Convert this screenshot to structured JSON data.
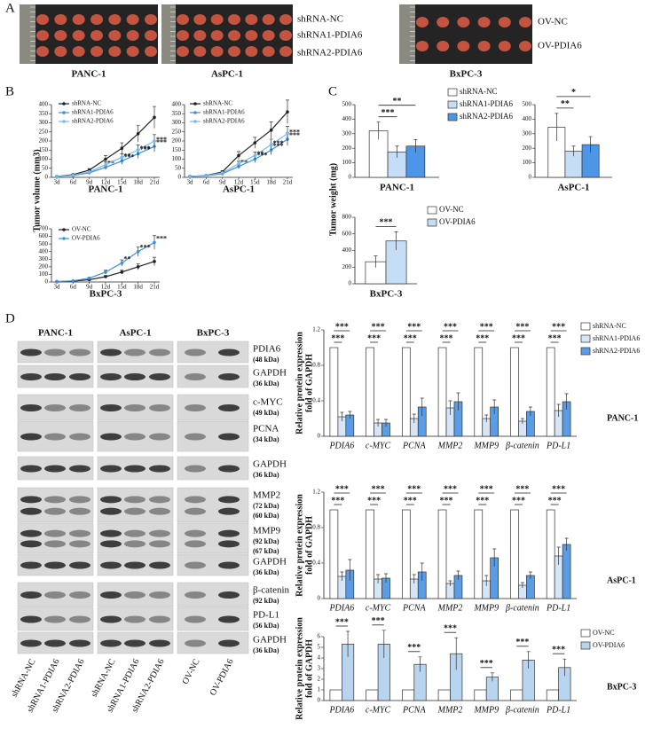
{
  "figure": {
    "panel_labels": [
      "A",
      "B",
      "C",
      "D"
    ]
  },
  "panel_a": {
    "shrna_legend": [
      "shRNA-NC",
      "shRNA1-PDIA6",
      "shRNA2-PDIA6"
    ],
    "ov_legend": [
      "OV-NC",
      "OV-PDIA6"
    ],
    "cell_lines": [
      "PANC-1",
      "AsPC-1",
      "BxPC-3"
    ]
  },
  "panel_b": {
    "ylabel": "Tumor volume (mm3)"
  },
  "panel_c": {
    "ylabel": "Tumor weight (mg)"
  },
  "panel_d_blots": {
    "cell_lines": [
      "PANC-1",
      "AsPC-1",
      "BxPC-3"
    ],
    "rows": [
      {
        "protein": "PDIA6",
        "sizes": [
          "(48 kDa)"
        ]
      },
      {
        "protein": "GAPDH",
        "sizes": [
          "(36 kDa)"
        ]
      },
      {
        "protein": "c-MYC",
        "sizes": [
          "(49 kDa)"
        ]
      },
      {
        "protein": "PCNA",
        "sizes": [
          "(34 kDa)"
        ]
      },
      {
        "protein": "GAPDH",
        "sizes": [
          "(36 kDa)"
        ]
      },
      {
        "protein": "MMP2",
        "sizes": [
          "(72 kDa)",
          "(60 kDa)"
        ]
      },
      {
        "protein": "MMP9",
        "sizes": [
          "(92 kDa)",
          "(67 kDa)"
        ]
      },
      {
        "protein": "GAPDH",
        "sizes": [
          "(36 kDa)"
        ]
      },
      {
        "protein": "β-catenin",
        "sizes": [
          "(92 kDa)"
        ]
      },
      {
        "protein": "PD-L1",
        "sizes": [
          "(56 kDa)"
        ]
      },
      {
        "protein": "GAPDH",
        "sizes": [
          "(36 kDa)"
        ]
      }
    ],
    "lanes": [
      "shRNA-NC",
      "shRNA1-PDIA6",
      "shRNA2-PDIA6",
      "shRNA-NC",
      "shRNA1-PDIA6",
      "shRNA2-PDIA6",
      "OV-NC",
      "OV-PDIA6"
    ]
  },
  "chart_data": [
    {
      "type": "line",
      "xlabel": "PANC-1",
      "categories": [
        "3d",
        "6d",
        "9d",
        "12d",
        "15d",
        "18d",
        "21d"
      ],
      "ylim": [
        0,
        400
      ],
      "yticks": [
        0,
        50,
        100,
        150,
        200,
        250,
        300,
        350,
        400
      ],
      "series": [
        {
          "name": "shRNA-NC",
          "color": "#222222",
          "values": [
            5,
            15,
            40,
            100,
            160,
            240,
            330
          ],
          "errors": [
            1,
            3,
            8,
            20,
            30,
            45,
            60
          ]
        },
        {
          "name": "shRNA1-PDIA6",
          "color": "#3d8fe0",
          "values": [
            5,
            10,
            25,
            55,
            90,
            130,
            170
          ],
          "errors": [
            1,
            2,
            5,
            12,
            18,
            25,
            30
          ],
          "significance": [
            null,
            null,
            null,
            "**",
            "***",
            "***",
            "***"
          ]
        },
        {
          "name": "shRNA2-PDIA6",
          "color": "#7ab8f0",
          "values": [
            5,
            12,
            30,
            70,
            110,
            150,
            200
          ],
          "errors": [
            1,
            2,
            6,
            14,
            20,
            28,
            35
          ],
          "significance": [
            null,
            null,
            null,
            null,
            "**",
            "***",
            "***"
          ]
        }
      ]
    },
    {
      "type": "line",
      "xlabel": "AsPC-1",
      "categories": [
        "3d",
        "6d",
        "9d",
        "12d",
        "15d",
        "18d",
        "21d"
      ],
      "ylim": [
        0,
        400
      ],
      "yticks": [
        0,
        50,
        100,
        150,
        200,
        250,
        300,
        350,
        400
      ],
      "series": [
        {
          "name": "shRNA-NC",
          "color": "#222222",
          "values": [
            5,
            10,
            30,
            120,
            190,
            260,
            360
          ],
          "errors": [
            1,
            2,
            6,
            22,
            30,
            45,
            65
          ]
        },
        {
          "name": "shRNA1-PDIA6",
          "color": "#3d8fe0",
          "values": [
            5,
            8,
            20,
            60,
            100,
            150,
            210
          ],
          "errors": [
            1,
            2,
            4,
            12,
            18,
            25,
            35
          ],
          "significance": [
            null,
            null,
            null,
            "**",
            "***",
            "***",
            "***"
          ]
        },
        {
          "name": "shRNA2-PDIA6",
          "color": "#7ab8f0",
          "values": [
            5,
            9,
            25,
            75,
            120,
            180,
            240
          ],
          "errors": [
            1,
            2,
            5,
            14,
            20,
            30,
            40
          ],
          "significance": [
            null,
            null,
            null,
            null,
            "**",
            "***",
            "***"
          ]
        }
      ]
    },
    {
      "type": "line",
      "xlabel": "BxPC-3",
      "categories": [
        "3d",
        "6d",
        "9d",
        "12d",
        "15d",
        "18d",
        "21d"
      ],
      "ylim": [
        0,
        700
      ],
      "yticks": [
        0,
        100,
        200,
        300,
        400,
        500,
        600,
        700
      ],
      "series": [
        {
          "name": "OV-NC",
          "color": "#222222",
          "values": [
            5,
            10,
            30,
            70,
            130,
            200,
            270
          ],
          "errors": [
            1,
            3,
            8,
            15,
            25,
            40,
            55
          ]
        },
        {
          "name": "OV-PDIA6",
          "color": "#3d8fe0",
          "values": [
            5,
            15,
            50,
            130,
            250,
            400,
            520
          ],
          "errors": [
            1,
            3,
            10,
            25,
            40,
            60,
            90
          ],
          "significance": [
            null,
            null,
            null,
            null,
            "**",
            "***",
            "***"
          ]
        }
      ]
    },
    {
      "type": "bar",
      "xlabel": "PANC-1",
      "ylim": [
        0,
        500
      ],
      "yticks": [
        0,
        100,
        200,
        300,
        400,
        500
      ],
      "series": [
        {
          "name": "shRNA-NC",
          "color": "#ffffff",
          "values": [
            320
          ],
          "errors": [
            60
          ]
        },
        {
          "name": "shRNA1-PDIA6",
          "color": "#c6def5",
          "values": [
            175
          ],
          "errors": [
            40
          ],
          "significance": [
            "***"
          ]
        },
        {
          "name": "shRNA2-PDIA6",
          "color": "#4d95e6",
          "values": [
            215
          ],
          "errors": [
            45
          ],
          "significance": [
            "**"
          ]
        }
      ]
    },
    {
      "type": "bar",
      "xlabel": "AsPC-1",
      "ylim": [
        0,
        500
      ],
      "yticks": [
        0,
        100,
        200,
        300,
        400,
        500
      ],
      "series": [
        {
          "color": "#ffffff",
          "values": [
            345
          ],
          "errors": [
            95
          ]
        },
        {
          "color": "#c6def5",
          "values": [
            180
          ],
          "errors": [
            35
          ],
          "significance": [
            "**"
          ]
        },
        {
          "color": "#4d95e6",
          "values": [
            225
          ],
          "errors": [
            55
          ],
          "significance": [
            "*"
          ]
        }
      ]
    },
    {
      "type": "bar",
      "xlabel": "BxPC-3",
      "ylim": [
        0,
        800
      ],
      "yticks": [
        0,
        200,
        400,
        600,
        800
      ],
      "series": [
        {
          "name": "OV-NC",
          "color": "#ffffff",
          "values": [
            265
          ],
          "errors": [
            70
          ]
        },
        {
          "name": "OV-PDIA6",
          "color": "#c6def5",
          "values": [
            515
          ],
          "errors": [
            110
          ],
          "significance": [
            "***"
          ]
        }
      ]
    },
    {
      "type": "bar",
      "xlabel": "PANC-1",
      "ylabel": [
        "Relative protein expression",
        "fold of GAPDH"
      ],
      "categories": [
        "PDIA6",
        "c-MYC",
        "PCNA",
        "MMP2",
        "MMP9",
        "β-catenin",
        "PD-L1"
      ],
      "ylim": [
        0,
        1.2
      ],
      "yticks": [
        0,
        0.4,
        0.8,
        1.2
      ],
      "series": [
        {
          "name": "shRNA-NC",
          "color": "#ffffff",
          "values": [
            1,
            1,
            1,
            1,
            1,
            1,
            1
          ]
        },
        {
          "name": "shRNA1-PDIA6",
          "color": "#d6e6f7",
          "values": [
            0.22,
            0.15,
            0.2,
            0.32,
            0.2,
            0.17,
            0.29
          ],
          "errors": [
            0.05,
            0.04,
            0.05,
            0.08,
            0.04,
            0.03,
            0.07
          ],
          "significance": [
            "***",
            "***",
            "***",
            "***",
            "***",
            "***",
            "***"
          ]
        },
        {
          "name": "shRNA2-PDIA6",
          "color": "#5a9de6",
          "values": [
            0.24,
            0.15,
            0.33,
            0.39,
            0.33,
            0.28,
            0.39
          ],
          "errors": [
            0.04,
            0.04,
            0.1,
            0.1,
            0.08,
            0.05,
            0.09
          ],
          "significance": [
            "***",
            "***",
            "***",
            "***",
            "***",
            "***",
            "***"
          ]
        }
      ]
    },
    {
      "type": "bar",
      "xlabel": "AsPC-1",
      "ylabel": [
        "Relative protein expression",
        "fold of GAPDH"
      ],
      "categories": [
        "PDIA6",
        "c-MYC",
        "PCNA",
        "MMP2",
        "MMP9",
        "β-catenin",
        "PD-L1"
      ],
      "ylim": [
        0,
        1.2
      ],
      "yticks": [
        0,
        0.4,
        0.8,
        1.2
      ],
      "series": [
        {
          "color": "#ffffff",
          "values": [
            1,
            1,
            1,
            1,
            1,
            1,
            1
          ]
        },
        {
          "color": "#d6e6f7",
          "values": [
            0.25,
            0.22,
            0.22,
            0.17,
            0.2,
            0.15,
            0.48
          ],
          "errors": [
            0.05,
            0.05,
            0.05,
            0.03,
            0.06,
            0.03,
            0.1
          ],
          "significance": [
            "***",
            "***",
            "***",
            "***",
            "***",
            "***",
            "***"
          ]
        },
        {
          "color": "#5a9de6",
          "values": [
            0.32,
            0.23,
            0.3,
            0.26,
            0.46,
            0.26,
            0.61
          ],
          "errors": [
            0.12,
            0.05,
            0.1,
            0.05,
            0.1,
            0.04,
            0.07
          ],
          "significance": [
            "***",
            "***",
            "***",
            "***",
            "***",
            "***",
            "***"
          ]
        }
      ]
    },
    {
      "type": "bar",
      "xlabel": "BxPC-3",
      "ylabel": [
        "Relative protein expression",
        "fold of GAPDH"
      ],
      "categories": [
        "PDIA6",
        "c-MYC",
        "PCNA",
        "MMP2",
        "MMP9",
        "β-catenin",
        "PD-L1"
      ],
      "ylim": [
        0,
        6
      ],
      "yticks": [
        0,
        1,
        2,
        3,
        4,
        5,
        6
      ],
      "series": [
        {
          "name": "OV-NC",
          "color": "#ffffff",
          "values": [
            1,
            1,
            1,
            1,
            1,
            1,
            1
          ]
        },
        {
          "name": "OV-PDIA6",
          "color": "#b8d4ef",
          "values": [
            5.3,
            5.3,
            3.4,
            4.4,
            2.2,
            3.8,
            3.1
          ],
          "errors": [
            1.2,
            1.3,
            0.7,
            1.5,
            0.4,
            0.8,
            0.8
          ],
          "significance": [
            "***",
            "***",
            "***",
            "***",
            "***",
            "***",
            "***"
          ]
        }
      ]
    }
  ]
}
